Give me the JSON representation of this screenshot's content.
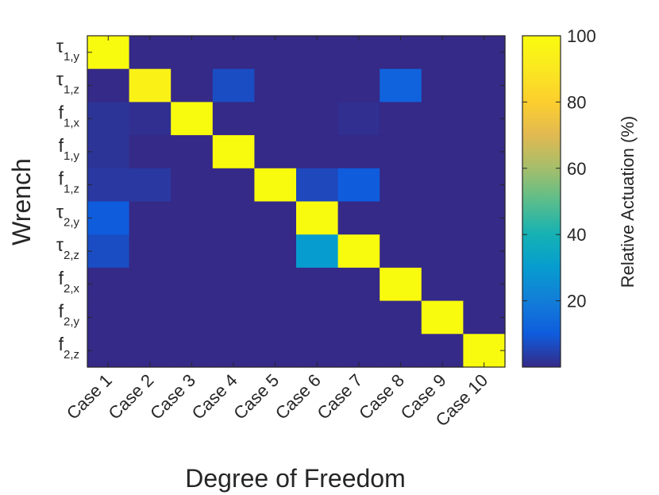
{
  "chart_data": {
    "type": "heatmap",
    "xlabel": "Degree of Freedom",
    "ylabel": "Wrench",
    "colorbar_label": "Relative Actuation (%)",
    "colormap": "parula",
    "clim": [
      0,
      100
    ],
    "colorbar_ticks": [
      "20",
      "40",
      "60",
      "80",
      "100"
    ],
    "colorbar_tick_values": [
      20,
      40,
      60,
      80,
      100
    ],
    "x_categories": [
      "Case 1",
      "Case 2",
      "Case 3",
      "Case 4",
      "Case 5",
      "Case 6",
      "Case 7",
      "Case 8",
      "Case 9",
      "Case 10"
    ],
    "y_categories": [
      {
        "symbol": "τ",
        "sub": "1,y"
      },
      {
        "symbol": "τ",
        "sub": "1,z"
      },
      {
        "symbol": "f",
        "sub": "1,x"
      },
      {
        "symbol": "f",
        "sub": "1,y"
      },
      {
        "symbol": "f",
        "sub": "1,z"
      },
      {
        "symbol": "τ",
        "sub": "2,y"
      },
      {
        "symbol": "τ",
        "sub": "2,z"
      },
      {
        "symbol": "f",
        "sub": "2,x"
      },
      {
        "symbol": "f",
        "sub": "2,y"
      },
      {
        "symbol": "f",
        "sub": "2,z"
      }
    ],
    "values": [
      [
        100,
        0,
        0,
        0,
        0,
        0,
        0,
        0,
        0,
        0
      ],
      [
        0,
        95,
        0,
        7,
        0,
        0,
        0,
        12,
        0,
        0
      ],
      [
        2,
        1,
        100,
        0,
        0,
        0,
        1,
        0,
        0,
        0
      ],
      [
        2,
        0,
        0,
        100,
        0,
        0,
        0,
        0,
        0,
        0
      ],
      [
        3,
        3,
        0,
        0,
        100,
        6,
        10,
        0,
        0,
        0
      ],
      [
        10,
        0,
        0,
        0,
        0,
        100,
        0,
        0,
        0,
        0
      ],
      [
        7,
        0,
        0,
        0,
        0,
        30,
        100,
        0,
        0,
        0
      ],
      [
        0,
        0,
        0,
        0,
        0,
        0,
        0,
        100,
        0,
        0
      ],
      [
        0,
        0,
        0,
        0,
        0,
        0,
        0,
        0,
        100,
        0
      ],
      [
        0,
        0,
        0,
        0,
        0,
        0,
        0,
        0,
        0,
        100
      ]
    ]
  }
}
